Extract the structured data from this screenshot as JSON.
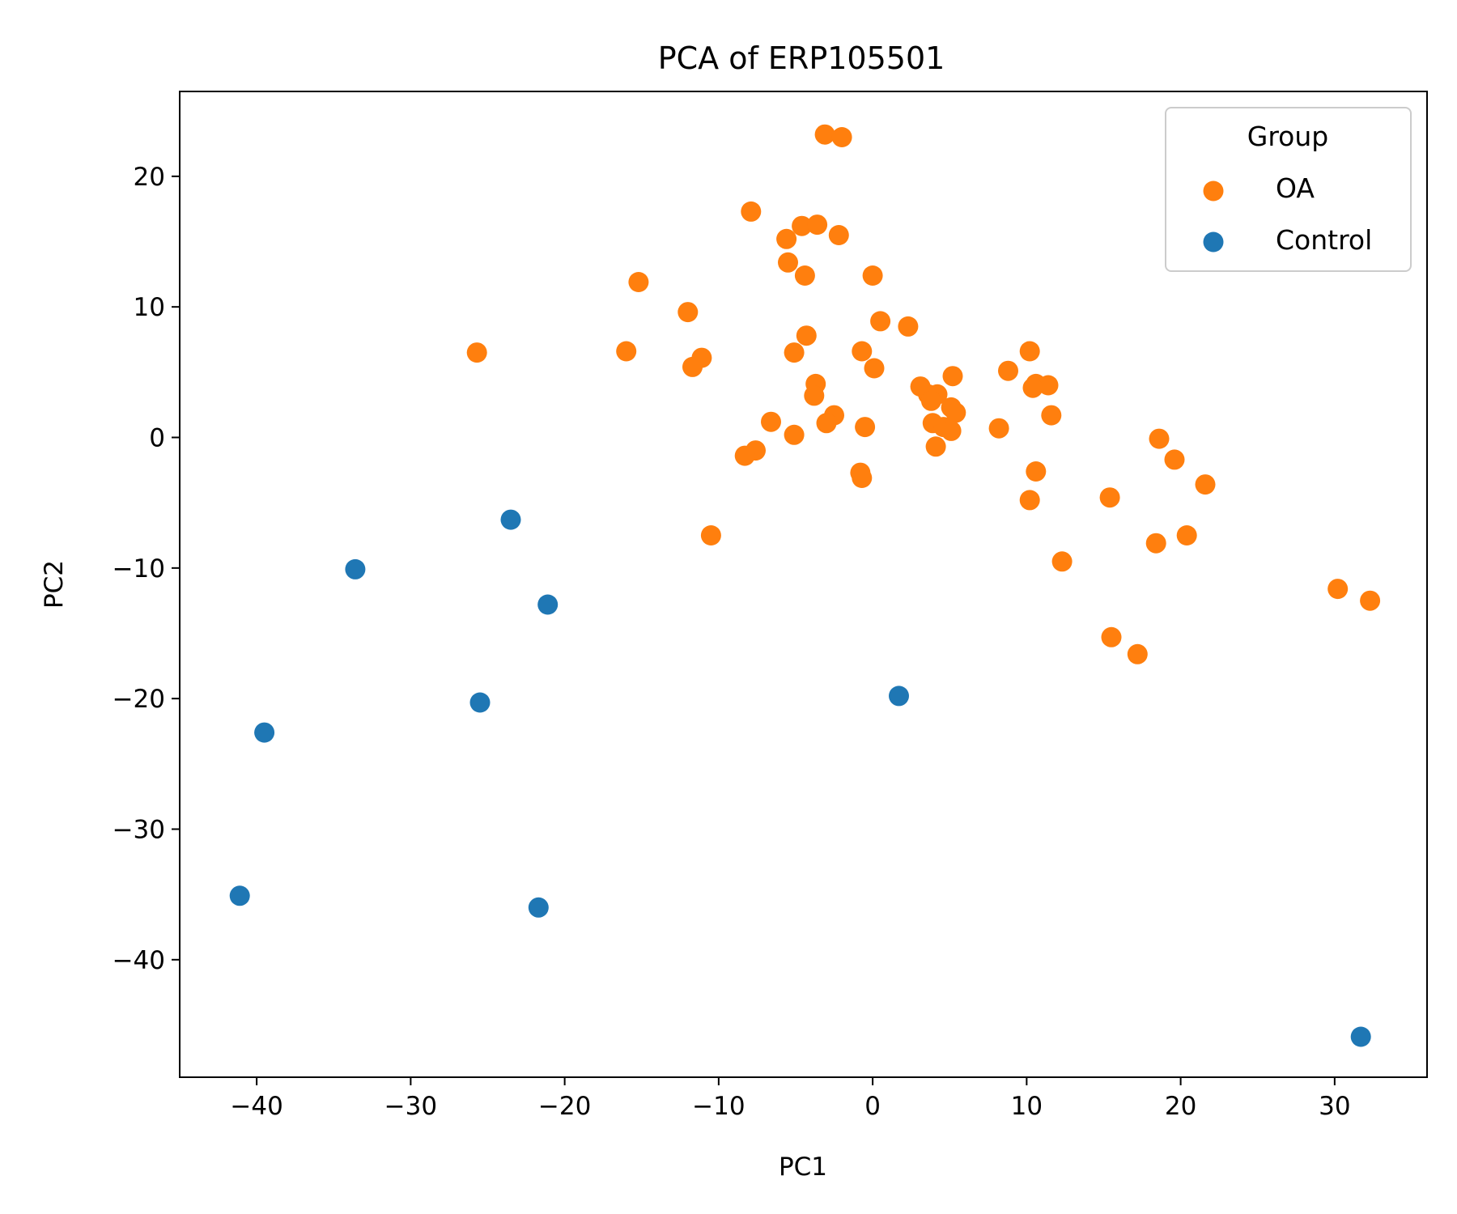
{
  "chart_data": {
    "type": "scatter",
    "title": "PCA of ERP105501",
    "xlabel": "PC1",
    "ylabel": "PC2",
    "xlim": [
      -45,
      36
    ],
    "ylim": [
      -49,
      26.5
    ],
    "xticks": [
      -40,
      -30,
      -20,
      -10,
      0,
      10,
      20,
      30
    ],
    "yticks": [
      -40,
      -30,
      -20,
      -10,
      0,
      10,
      20
    ],
    "xtick_labels": [
      "−40",
      "−30",
      "−20",
      "−10",
      "0",
      "10",
      "20",
      "30"
    ],
    "ytick_labels": [
      "−40",
      "−30",
      "−20",
      "−10",
      "0",
      "10",
      "20"
    ],
    "grid": false,
    "legend": {
      "title": "Group",
      "position": "top-right",
      "entries": [
        {
          "name": "OA",
          "color": "#ff7f0e"
        },
        {
          "name": "Control",
          "color": "#1f77b4"
        }
      ]
    },
    "series": [
      {
        "name": "OA",
        "color": "#ff7f0e",
        "points": [
          [
            -3.1,
            23.2
          ],
          [
            -2.0,
            23.0
          ],
          [
            -7.9,
            17.3
          ],
          [
            -4.6,
            16.2
          ],
          [
            -3.6,
            16.3
          ],
          [
            -5.6,
            15.2
          ],
          [
            -2.2,
            15.5
          ],
          [
            -5.5,
            13.4
          ],
          [
            -4.4,
            12.4
          ],
          [
            0.0,
            12.4
          ],
          [
            -15.2,
            11.9
          ],
          [
            -12.0,
            9.6
          ],
          [
            0.5,
            8.9
          ],
          [
            2.3,
            8.5
          ],
          [
            -4.3,
            7.8
          ],
          [
            -25.7,
            6.5
          ],
          [
            -16.0,
            6.6
          ],
          [
            -5.1,
            6.5
          ],
          [
            -0.7,
            6.6
          ],
          [
            10.2,
            6.6
          ],
          [
            -11.1,
            6.1
          ],
          [
            -11.7,
            5.4
          ],
          [
            0.1,
            5.3
          ],
          [
            8.8,
            5.1
          ],
          [
            5.2,
            4.7
          ],
          [
            -3.7,
            4.1
          ],
          [
            3.1,
            3.9
          ],
          [
            10.6,
            4.1
          ],
          [
            11.4,
            4.0
          ],
          [
            10.4,
            3.8
          ],
          [
            -3.8,
            3.2
          ],
          [
            3.6,
            3.3
          ],
          [
            4.2,
            3.3
          ],
          [
            3.8,
            2.8
          ],
          [
            5.1,
            2.3
          ],
          [
            5.4,
            1.9
          ],
          [
            -2.5,
            1.7
          ],
          [
            11.6,
            1.7
          ],
          [
            -6.6,
            1.2
          ],
          [
            -3.0,
            1.1
          ],
          [
            3.9,
            1.1
          ],
          [
            4.6,
            0.8
          ],
          [
            -0.5,
            0.8
          ],
          [
            8.2,
            0.7
          ],
          [
            5.1,
            0.5
          ],
          [
            -5.1,
            0.2
          ],
          [
            18.6,
            -0.1
          ],
          [
            4.1,
            -0.7
          ],
          [
            -7.6,
            -1.0
          ],
          [
            -8.3,
            -1.4
          ],
          [
            19.6,
            -1.7
          ],
          [
            10.6,
            -2.6
          ],
          [
            -0.8,
            -2.7
          ],
          [
            -0.7,
            -3.1
          ],
          [
            21.6,
            -3.6
          ],
          [
            15.4,
            -4.6
          ],
          [
            10.2,
            -4.8
          ],
          [
            -10.5,
            -7.5
          ],
          [
            20.4,
            -7.5
          ],
          [
            18.4,
            -8.1
          ],
          [
            12.3,
            -9.5
          ],
          [
            30.2,
            -11.6
          ],
          [
            32.3,
            -12.5
          ],
          [
            15.5,
            -15.3
          ],
          [
            17.2,
            -16.6
          ]
        ]
      },
      {
        "name": "Control",
        "color": "#1f77b4",
        "points": [
          [
            -23.5,
            -6.3
          ],
          [
            -33.6,
            -10.1
          ],
          [
            -21.1,
            -12.8
          ],
          [
            1.7,
            -19.8
          ],
          [
            -25.5,
            -20.3
          ],
          [
            -39.5,
            -22.6
          ],
          [
            -41.1,
            -35.1
          ],
          [
            -21.7,
            -36.0
          ],
          [
            31.7,
            -45.9
          ]
        ]
      }
    ]
  }
}
